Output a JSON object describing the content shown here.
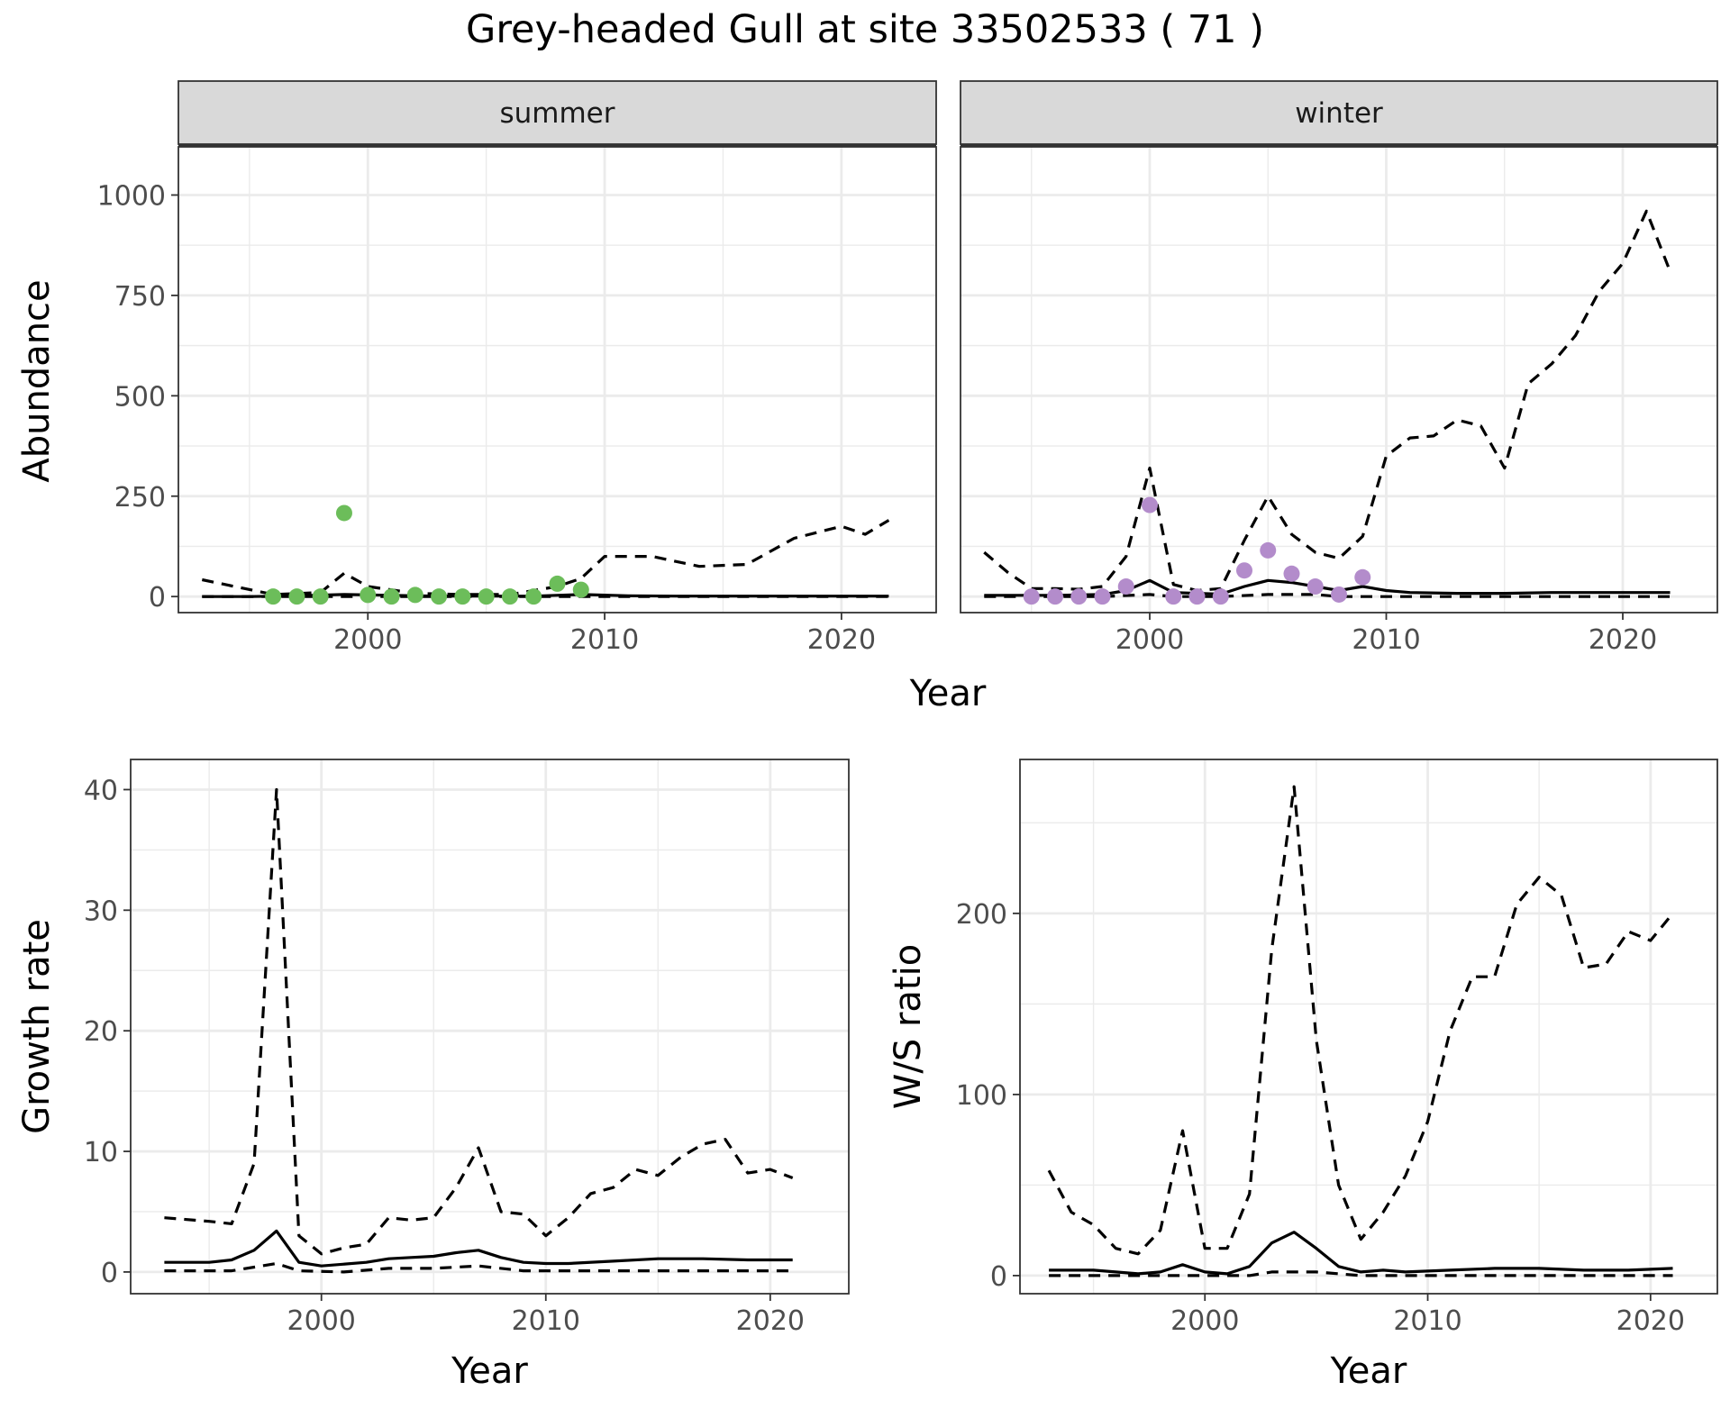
{
  "title": "Grey-headed Gull at site 33502533 ( 71 )",
  "chart_data": [
    {
      "type": "line",
      "facet": "summer",
      "xlabel": "Year",
      "ylabel": "Abundance",
      "xlim": [
        1992,
        2024
      ],
      "ylim": [
        -40,
        1120
      ],
      "xticks": [
        2000,
        2010,
        2020
      ],
      "yticks": [
        0,
        250,
        500,
        750,
        1000
      ],
      "grid": true,
      "point_color": "#6cbd5a",
      "series": [
        {
          "style": "solid",
          "x": [
            1993,
            1995,
            1997,
            1999,
            2001,
            2003,
            2005,
            2007,
            2009,
            2011,
            2013,
            2015,
            2017,
            2019,
            2021,
            2022
          ],
          "values": [
            0,
            0,
            2,
            5,
            3,
            1,
            1,
            1,
            5,
            2,
            1,
            1,
            1,
            1,
            1,
            1
          ]
        },
        {
          "style": "dashed",
          "x": [
            1993,
            1996,
            1998,
            1999,
            2000,
            2002,
            2004,
            2006,
            2008,
            2009,
            2010,
            2012,
            2014,
            2016,
            2018,
            2020,
            2021,
            2022
          ],
          "values": [
            42,
            5,
            10,
            58,
            25,
            8,
            5,
            5,
            25,
            45,
            100,
            100,
            75,
            80,
            145,
            175,
            155,
            190
          ]
        },
        {
          "style": "dashed",
          "x": [
            1993,
            2000,
            2005,
            2010,
            2015,
            2022
          ],
          "values": [
            0,
            0,
            0,
            0,
            0,
            0
          ]
        }
      ],
      "points": {
        "x": [
          1996,
          1997,
          1998,
          1999,
          2000,
          2001,
          2002,
          2003,
          2004,
          2005,
          2006,
          2007,
          2008,
          2009
        ],
        "values": [
          0,
          0,
          0,
          208,
          4,
          0,
          4,
          0,
          0,
          0,
          0,
          0,
          32,
          17
        ]
      }
    },
    {
      "type": "line",
      "facet": "winter",
      "xlabel": "Year",
      "ylabel": "Abundance",
      "xlim": [
        1992,
        2024
      ],
      "ylim": [
        -40,
        1120
      ],
      "xticks": [
        2000,
        2010,
        2020
      ],
      "yticks": [
        0,
        250,
        500,
        750,
        1000
      ],
      "grid": true,
      "point_color": "#b38ccb",
      "series": [
        {
          "style": "solid",
          "x": [
            1993,
            1996,
            1998,
            1999,
            2000,
            2001,
            2003,
            2004,
            2005,
            2006,
            2007,
            2008,
            2009,
            2010,
            2011,
            2013,
            2015,
            2017,
            2019,
            2021,
            2022
          ],
          "values": [
            3,
            3,
            5,
            15,
            40,
            10,
            6,
            25,
            40,
            35,
            25,
            15,
            25,
            15,
            10,
            8,
            8,
            10,
            10,
            10,
            10
          ]
        },
        {
          "style": "dashed",
          "x": [
            1993,
            1994,
            1995,
            1996,
            1997,
            1998,
            1999,
            2000,
            2001,
            2002,
            2003,
            2004,
            2005,
            2006,
            2007,
            2008,
            2009,
            2010,
            2011,
            2012,
            2013,
            2014,
            2015,
            2016,
            2017,
            2018,
            2019,
            2020,
            2021,
            2022
          ],
          "values": [
            110,
            60,
            20,
            20,
            18,
            25,
            100,
            320,
            30,
            15,
            20,
            140,
            250,
            155,
            110,
            95,
            150,
            350,
            395,
            400,
            440,
            425,
            320,
            530,
            580,
            650,
            760,
            830,
            960,
            810
          ]
        },
        {
          "style": "dashed",
          "x": [
            1993,
            1998,
            2000,
            2001,
            2003,
            2005,
            2007,
            2008,
            2010,
            2015,
            2022
          ],
          "values": [
            0,
            0,
            5,
            0,
            0,
            5,
            5,
            0,
            0,
            0,
            0
          ]
        }
      ],
      "points": {
        "x": [
          1995,
          1996,
          1997,
          1998,
          1999,
          2000,
          2001,
          2002,
          2003,
          2004,
          2005,
          2006,
          2007,
          2008,
          2009
        ],
        "values": [
          0,
          0,
          0,
          0,
          25,
          228,
          0,
          0,
          0,
          65,
          115,
          57,
          25,
          5,
          48
        ]
      }
    },
    {
      "type": "line",
      "xlabel": "Year",
      "ylabel": "Growth rate",
      "xlim": [
        1991.5,
        2023.5
      ],
      "ylim": [
        -1.8,
        42.5
      ],
      "xticks": [
        2000,
        2010,
        2020
      ],
      "yticks": [
        0,
        10,
        20,
        30,
        40
      ],
      "grid": true,
      "series": [
        {
          "style": "solid",
          "x": [
            1993,
            1995,
            1996,
            1997,
            1998,
            1999,
            2000,
            2002,
            2003,
            2004,
            2005,
            2006,
            2007,
            2008,
            2009,
            2010,
            2011,
            2013,
            2015,
            2017,
            2019,
            2021
          ],
          "values": [
            0.8,
            0.8,
            1.0,
            1.8,
            3.4,
            0.8,
            0.5,
            0.8,
            1.1,
            1.2,
            1.3,
            1.6,
            1.8,
            1.2,
            0.8,
            0.7,
            0.7,
            0.9,
            1.1,
            1.1,
            1.0,
            1.0
          ]
        },
        {
          "style": "dashed",
          "x": [
            1993,
            1995,
            1996,
            1997,
            1998,
            1999,
            2000,
            2001,
            2002,
            2003,
            2004,
            2005,
            2006,
            2007,
            2008,
            2009,
            2010,
            2011,
            2012,
            2013,
            2014,
            2015,
            2016,
            2017,
            2018,
            2019,
            2020,
            2021
          ],
          "values": [
            4.5,
            4.2,
            4.0,
            9.0,
            40.0,
            3.0,
            1.5,
            2.0,
            2.3,
            4.5,
            4.3,
            4.5,
            7.0,
            10.3,
            5.0,
            4.8,
            3.0,
            4.5,
            6.5,
            7.0,
            8.5,
            8.0,
            9.5,
            10.6,
            11.0,
            8.2,
            8.5,
            7.8
          ]
        },
        {
          "style": "dashed",
          "x": [
            1993,
            1996,
            1998,
            1999,
            2001,
            2003,
            2005,
            2007,
            2009,
            2011,
            2013,
            2015,
            2017,
            2019,
            2021
          ],
          "values": [
            0.1,
            0.1,
            0.7,
            0.1,
            0.0,
            0.3,
            0.3,
            0.5,
            0.1,
            0.1,
            0.1,
            0.1,
            0.1,
            0.1,
            0.1
          ]
        }
      ]
    },
    {
      "type": "line",
      "xlabel": "Year",
      "ylabel": "W/S ratio",
      "xlim": [
        1991.7,
        2023.0
      ],
      "ylim": [
        -10,
        285
      ],
      "xticks": [
        2000,
        2010,
        2020
      ],
      "yticks": [
        0,
        100,
        200
      ],
      "grid": true,
      "series": [
        {
          "style": "solid",
          "x": [
            1993,
            1995,
            1996,
            1997,
            1998,
            1999,
            2000,
            2001,
            2002,
            2003,
            2004,
            2005,
            2006,
            2007,
            2008,
            2009,
            2011,
            2013,
            2015,
            2017,
            2019,
            2021
          ],
          "values": [
            3,
            3,
            2,
            1,
            2,
            6,
            2,
            1,
            5,
            18,
            24,
            15,
            5,
            2,
            3,
            2,
            3,
            4,
            4,
            3,
            3,
            4
          ]
        },
        {
          "style": "dashed",
          "x": [
            1993,
            1994,
            1995,
            1996,
            1997,
            1998,
            1999,
            2000,
            2001,
            2002,
            2003,
            2004,
            2005,
            2006,
            2007,
            2008,
            2009,
            2010,
            2011,
            2012,
            2013,
            2014,
            2015,
            2016,
            2017,
            2018,
            2019,
            2020,
            2021
          ],
          "values": [
            58,
            35,
            28,
            15,
            12,
            25,
            80,
            15,
            15,
            45,
            180,
            270,
            130,
            50,
            20,
            35,
            55,
            85,
            135,
            165,
            165,
            205,
            220,
            210,
            170,
            172,
            190,
            185,
            200
          ]
        },
        {
          "style": "dashed",
          "x": [
            1993,
            1996,
            1998,
            2000,
            2001,
            2002,
            2003,
            2004,
            2005,
            2007,
            2009,
            2011,
            2015,
            2021
          ],
          "values": [
            0,
            0,
            0,
            0,
            0,
            0,
            2,
            2,
            2,
            0,
            0,
            0,
            0,
            0
          ]
        }
      ]
    }
  ]
}
